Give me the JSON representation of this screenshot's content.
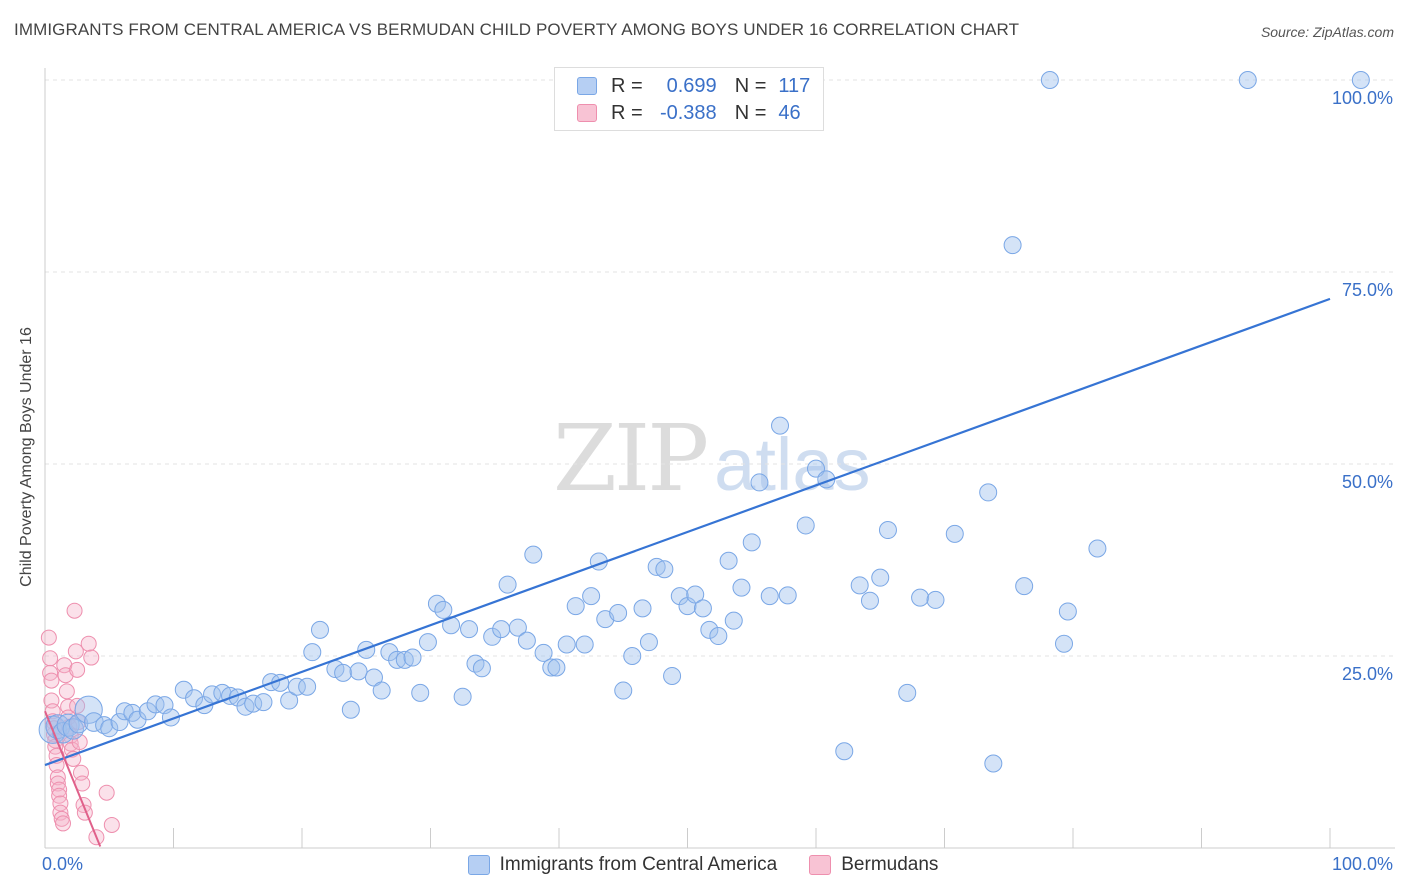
{
  "header": {
    "title": "IMMIGRANTS FROM CENTRAL AMERICA VS BERMUDAN CHILD POVERTY AMONG BOYS UNDER 16 CORRELATION CHART",
    "source": "Source: ZipAtlas.com"
  },
  "watermark": {
    "zip": "ZIP",
    "atlas": "atlas"
  },
  "legend": {
    "r_label": "R =",
    "n_label": "N =",
    "series": [
      {
        "name": "Immigrants from Central America",
        "r": "0.699",
        "n": "117",
        "color": "#7aa7e6",
        "fill": "#b6cff3"
      },
      {
        "name": "Bermudans",
        "r": "-0.388",
        "n": "46",
        "color": "#ee8fae",
        "fill": "#f8c3d4"
      }
    ]
  },
  "chart_data": {
    "type": "scatter",
    "title": "IMMIGRANTS FROM CENTRAL AMERICA VS BERMUDAN CHILD POVERTY AMONG BOYS UNDER 16 CORRELATION CHART",
    "xlabel": "",
    "ylabel": "Child Poverty Among Boys Under 16",
    "xlim": [
      0,
      100
    ],
    "ylim": [
      0,
      100
    ],
    "x_tick_labels": [
      "0.0%",
      "100.0%"
    ],
    "y_tick_labels": [
      "25.0%",
      "50.0%",
      "75.0%",
      "100.0%"
    ],
    "y_ticks": [
      25,
      50,
      75,
      100
    ],
    "grid": true,
    "series": [
      {
        "name": "Immigrants from Central America",
        "color": "#7aa7e6",
        "trend": {
          "x": [
            0,
            100
          ],
          "y": [
            10.8,
            71.5
          ],
          "color": "#3674d4"
        },
        "points": [
          [
            0.6,
            15.4,
            1.6
          ],
          [
            1.0,
            15.8,
            1.4
          ],
          [
            1.4,
            15.0,
            1.2
          ],
          [
            1.8,
            16.0,
            1.3
          ],
          [
            2.2,
            15.5,
            1.2
          ],
          [
            2.6,
            16.2,
            1.1
          ],
          [
            3.4,
            18.0,
            1.6
          ],
          [
            3.8,
            16.4,
            1.1
          ],
          [
            4.6,
            16.0,
            1
          ],
          [
            5.0,
            15.6,
            1
          ],
          [
            5.8,
            16.4,
            1
          ],
          [
            6.2,
            17.8,
            1
          ],
          [
            6.8,
            17.6,
            1
          ],
          [
            7.2,
            16.7,
            1
          ],
          [
            8.0,
            17.8,
            1
          ],
          [
            8.6,
            18.7,
            1
          ],
          [
            9.3,
            18.6,
            1
          ],
          [
            9.8,
            17.0,
            1
          ],
          [
            10.8,
            20.6,
            1
          ],
          [
            11.6,
            19.5,
            1
          ],
          [
            12.4,
            18.6,
            1
          ],
          [
            13.0,
            20.0,
            1
          ],
          [
            13.8,
            20.2,
            1
          ],
          [
            14.4,
            19.8,
            1
          ],
          [
            15.0,
            19.6,
            1
          ],
          [
            15.6,
            18.4,
            1
          ],
          [
            16.2,
            18.8,
            1
          ],
          [
            17.0,
            19.0,
            1
          ],
          [
            17.6,
            21.6,
            1
          ],
          [
            18.3,
            21.5,
            1
          ],
          [
            19.0,
            19.2,
            1
          ],
          [
            19.6,
            21.0,
            1
          ],
          [
            20.4,
            21.0,
            1
          ],
          [
            20.8,
            25.5,
            1
          ],
          [
            21.4,
            28.4,
            1
          ],
          [
            22.6,
            23.3,
            1
          ],
          [
            23.2,
            22.8,
            1
          ],
          [
            23.8,
            18.0,
            1
          ],
          [
            24.4,
            23.0,
            1
          ],
          [
            25.0,
            25.8,
            1
          ],
          [
            25.6,
            22.2,
            1
          ],
          [
            26.2,
            20.5,
            1
          ],
          [
            26.8,
            25.5,
            1
          ],
          [
            27.4,
            24.5,
            1
          ],
          [
            28.0,
            24.5,
            1
          ],
          [
            28.6,
            24.8,
            1
          ],
          [
            29.2,
            20.2,
            1
          ],
          [
            29.8,
            26.8,
            1
          ],
          [
            30.5,
            31.8,
            1
          ],
          [
            31.0,
            31.0,
            1
          ],
          [
            31.6,
            29.0,
            1
          ],
          [
            32.5,
            19.7,
            1
          ],
          [
            33.0,
            28.5,
            1
          ],
          [
            33.5,
            24.0,
            1
          ],
          [
            34.0,
            23.4,
            1
          ],
          [
            34.8,
            27.5,
            1
          ],
          [
            35.5,
            28.5,
            1
          ],
          [
            36.0,
            34.3,
            1
          ],
          [
            36.8,
            28.7,
            1
          ],
          [
            37.5,
            27.0,
            1
          ],
          [
            38.0,
            38.2,
            1
          ],
          [
            38.8,
            25.4,
            1
          ],
          [
            39.4,
            23.5,
            1
          ],
          [
            39.8,
            23.5,
            1
          ],
          [
            40.6,
            26.5,
            1
          ],
          [
            41.3,
            31.5,
            1
          ],
          [
            42.0,
            26.5,
            1
          ],
          [
            42.5,
            32.8,
            1
          ],
          [
            43.1,
            37.3,
            1
          ],
          [
            43.6,
            29.8,
            1
          ],
          [
            44.6,
            30.6,
            1
          ],
          [
            45.0,
            20.5,
            1
          ],
          [
            45.7,
            25.0,
            1
          ],
          [
            46.5,
            31.2,
            1
          ],
          [
            47.0,
            26.8,
            1
          ],
          [
            47.6,
            36.6,
            1
          ],
          [
            48.2,
            36.3,
            1
          ],
          [
            48.8,
            22.4,
            1
          ],
          [
            49.4,
            32.8,
            1
          ],
          [
            50.0,
            31.5,
            1
          ],
          [
            50.6,
            33.0,
            1
          ],
          [
            51.2,
            31.2,
            1
          ],
          [
            51.7,
            28.4,
            1
          ],
          [
            52.4,
            27.6,
            1
          ],
          [
            53.2,
            37.4,
            1
          ],
          [
            53.6,
            29.6,
            1
          ],
          [
            54.2,
            33.9,
            1
          ],
          [
            55.0,
            39.8,
            1
          ],
          [
            55.6,
            47.6,
            1
          ],
          [
            56.4,
            32.8,
            1
          ],
          [
            57.2,
            55.0,
            1
          ],
          [
            57.8,
            32.9,
            1
          ],
          [
            59.2,
            42.0,
            1
          ],
          [
            60.0,
            49.4,
            1
          ],
          [
            60.8,
            48.0,
            1
          ],
          [
            62.2,
            12.6,
            1
          ],
          [
            63.4,
            34.2,
            1
          ],
          [
            64.2,
            32.2,
            1
          ],
          [
            65.0,
            35.2,
            1
          ],
          [
            65.6,
            41.4,
            1
          ],
          [
            67.1,
            20.2,
            1
          ],
          [
            68.1,
            32.6,
            1
          ],
          [
            69.3,
            32.3,
            1
          ],
          [
            70.8,
            40.9,
            1
          ],
          [
            73.4,
            46.3,
            1
          ],
          [
            73.8,
            11.0,
            1
          ],
          [
            75.3,
            78.5,
            1
          ],
          [
            76.2,
            34.1,
            1
          ],
          [
            78.2,
            100.0,
            1
          ],
          [
            79.3,
            26.6,
            1
          ],
          [
            79.6,
            30.8,
            1
          ],
          [
            81.9,
            39.0,
            1
          ],
          [
            93.6,
            100.0,
            1
          ],
          [
            102.4,
            100.0,
            1
          ]
        ]
      },
      {
        "name": "Bermudans",
        "color": "#ee8fae",
        "trend": {
          "x": [
            0,
            4.3
          ],
          "y": [
            17.8,
            0.2
          ],
          "color": "#e0608a"
        },
        "points": [
          [
            0.3,
            27.4
          ],
          [
            0.4,
            24.7
          ],
          [
            0.4,
            22.8
          ],
          [
            0.5,
            21.8
          ],
          [
            0.5,
            19.2
          ],
          [
            0.6,
            17.8
          ],
          [
            0.6,
            16.5
          ],
          [
            0.7,
            15.6
          ],
          [
            0.7,
            14.8
          ],
          [
            0.8,
            14.0
          ],
          [
            0.8,
            13.2
          ],
          [
            0.9,
            12.0
          ],
          [
            0.9,
            10.8
          ],
          [
            1.0,
            9.2
          ],
          [
            1.0,
            8.4
          ],
          [
            1.1,
            7.6
          ],
          [
            1.1,
            6.8
          ],
          [
            1.2,
            5.8
          ],
          [
            1.2,
            4.6
          ],
          [
            1.3,
            3.8
          ],
          [
            1.4,
            3.2
          ],
          [
            1.5,
            23.8
          ],
          [
            1.6,
            22.5
          ],
          [
            1.7,
            20.4
          ],
          [
            1.8,
            18.4
          ],
          [
            1.8,
            17.0
          ],
          [
            1.9,
            15.8
          ],
          [
            2.0,
            14.6
          ],
          [
            2.0,
            13.6
          ],
          [
            2.1,
            12.8
          ],
          [
            2.2,
            11.6
          ],
          [
            2.3,
            30.9
          ],
          [
            2.4,
            25.6
          ],
          [
            2.5,
            23.2
          ],
          [
            2.5,
            18.5
          ],
          [
            2.6,
            16.4
          ],
          [
            2.7,
            13.8
          ],
          [
            2.8,
            9.8
          ],
          [
            2.9,
            8.4
          ],
          [
            3.0,
            5.6
          ],
          [
            3.1,
            4.6
          ],
          [
            3.4,
            26.6
          ],
          [
            3.6,
            24.8
          ],
          [
            4.0,
            1.4
          ],
          [
            4.8,
            7.2
          ],
          [
            5.2,
            3.0
          ]
        ]
      }
    ]
  }
}
